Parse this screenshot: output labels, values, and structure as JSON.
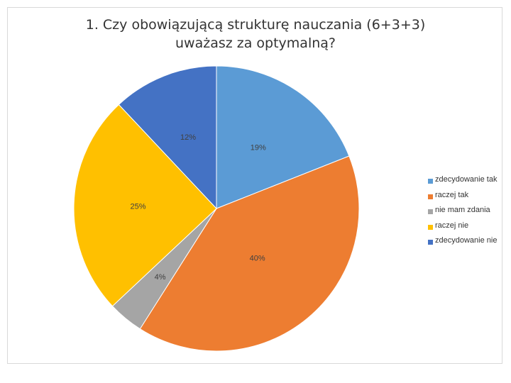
{
  "chart_data": {
    "type": "pie",
    "title_lines": [
      "1. Czy obowiązującą strukturę nauczania (6+3+3)",
      "uważasz za optymalną?"
    ],
    "slices": [
      {
        "label": "zdecydowanie tak",
        "value": 19,
        "value_label": "19%",
        "color": "#5b9bd5"
      },
      {
        "label": "raczej tak",
        "value": 40,
        "value_label": "40%",
        "color": "#ed7d31"
      },
      {
        "label": "nie mam zdania",
        "value": 4,
        "value_label": "4%",
        "color": "#a5a5a5"
      },
      {
        "label": "raczej nie",
        "value": 25,
        "value_label": "25%",
        "color": "#ffc000"
      },
      {
        "label": "zdecydowanie nie",
        "value": 12,
        "value_label": "12%",
        "color": "#4472c4"
      }
    ],
    "legend_position": "right"
  }
}
